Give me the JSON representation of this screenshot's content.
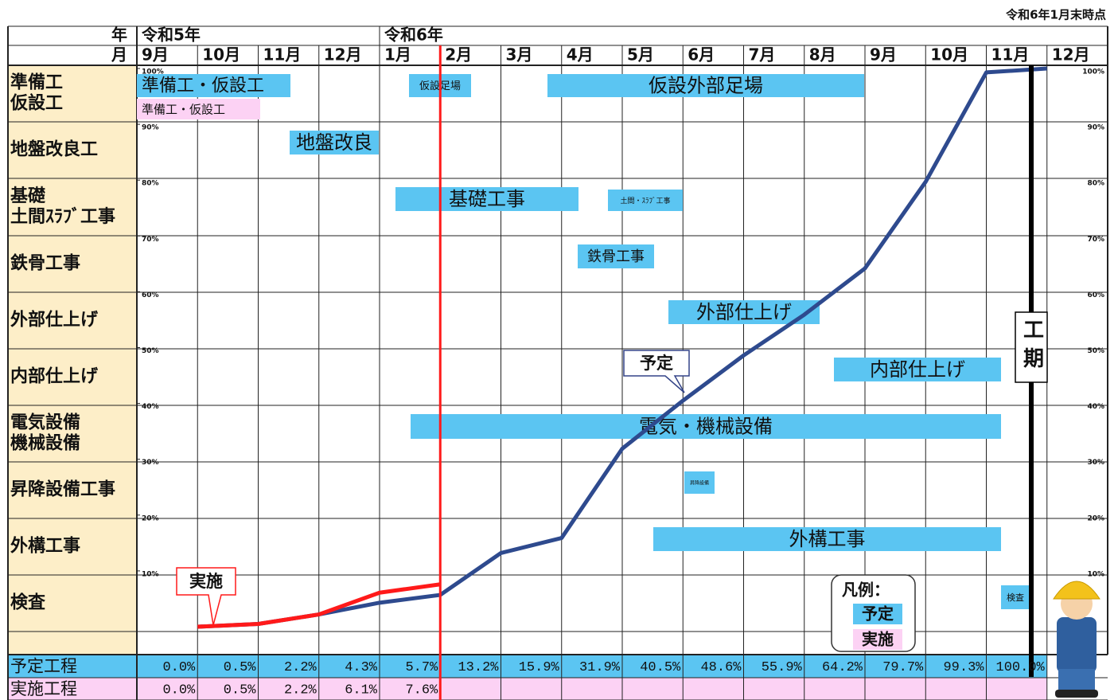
{
  "note": "令和6年1月末時点",
  "schedule": {
    "year_header": "年",
    "month_header": "月",
    "years": [
      "令和5年",
      "令和6年"
    ],
    "tasks": [
      [
        "準備工",
        "仮設工"
      ],
      [
        "地盤改良工"
      ],
      [
        "基礎",
        "土間ｽﾗﾌﾞ工事"
      ],
      [
        "鉄骨工事"
      ],
      [
        "外部仕上げ"
      ],
      [
        "内部仕上げ"
      ],
      [
        "電気設備",
        "機械設備"
      ],
      [
        "昇降設備工事"
      ],
      [
        "外構工事"
      ],
      [
        "検査"
      ]
    ],
    "bars": [
      "準備工・仮設工",
      "準備工・仮設工",
      "仮設足場",
      "仮設外部足場",
      "地盤改良",
      "基礎工事",
      "土間・ｽﾗﾌﾞ工事",
      "鉄骨工事",
      "外部仕上げ",
      "内部仕上げ",
      "電気・機械設備",
      "昇降設備",
      "外構工事",
      "検査"
    ],
    "period_label": "工期",
    "legend_title": "凡例："
  },
  "chart_data": {
    "type": "line",
    "categories": [
      "9月",
      "10月",
      "11月",
      "12月",
      "1月",
      "2月",
      "3月",
      "4月",
      "5月",
      "6月",
      "7月",
      "8月",
      "9月",
      "10月",
      "11月",
      "12月"
    ],
    "ylim": [
      0,
      100
    ],
    "yticks": [
      {
        "value": 100,
        "label": "100%"
      },
      {
        "value": 90,
        "label": "90%"
      },
      {
        "value": 80,
        "label": "80%"
      },
      {
        "value": 70,
        "label": "70%"
      },
      {
        "value": 60,
        "label": "60%"
      },
      {
        "value": 50,
        "label": "50%"
      },
      {
        "value": 40,
        "label": "40%"
      },
      {
        "value": 30,
        "label": "30%"
      },
      {
        "value": 20,
        "label": "20%"
      },
      {
        "value": 10,
        "label": "10%"
      }
    ],
    "series": [
      {
        "name": "予定",
        "row_label": "予定工程",
        "color": "#2e4a8e",
        "values": [
          0.0,
          0.5,
          2.2,
          4.3,
          5.7,
          13.2,
          15.9,
          31.9,
          40.5,
          48.6,
          55.9,
          64.2,
          79.7,
          99.3,
          100.0,
          null
        ],
        "value_labels": [
          "0.0%",
          "0.5%",
          "2.2%",
          "4.3%",
          "5.7%",
          "13.2%",
          "15.9%",
          "31.9%",
          "40.5%",
          "48.6%",
          "55.9%",
          "64.2%",
          "79.7%",
          "99.3%",
          "100.0%",
          null
        ]
      },
      {
        "name": "実施",
        "row_label": "実施工程",
        "color": "#ff1a1a",
        "values": [
          0.0,
          0.5,
          2.2,
          6.1,
          7.6,
          null,
          null,
          null,
          null,
          null,
          null,
          null,
          null,
          null,
          null,
          null
        ],
        "value_labels": [
          "0.0%",
          "0.5%",
          "2.2%",
          "6.1%",
          "7.6%",
          null,
          null,
          null,
          null,
          null,
          null,
          null,
          null,
          null,
          null,
          null
        ]
      }
    ]
  }
}
